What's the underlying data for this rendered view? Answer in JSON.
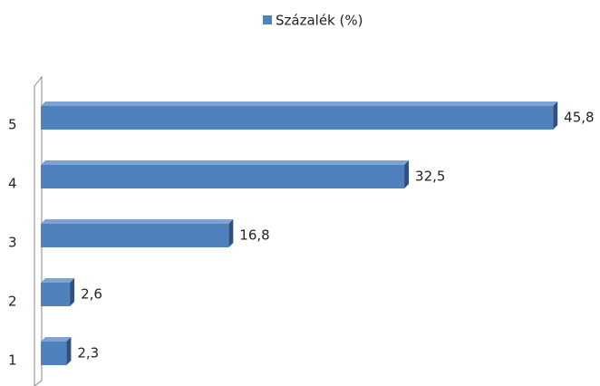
{
  "chart_data": {
    "type": "bar",
    "orientation": "horizontal",
    "categories": [
      "1",
      "2",
      "3",
      "4",
      "5"
    ],
    "series": [
      {
        "name": "Százalék (%)",
        "color": "#4f81bd",
        "values": [
          2.3,
          2.6,
          16.8,
          32.5,
          45.8
        ],
        "value_labels": [
          "2,3",
          "2,6",
          "16,8",
          "32,5",
          "45,8"
        ]
      }
    ],
    "xlim": [
      0,
      50
    ],
    "legend": "top"
  }
}
